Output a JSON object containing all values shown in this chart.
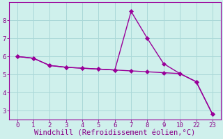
{
  "background_color": "#cff0ec",
  "grid_color": "#aad8d8",
  "line_color": "#990099",
  "markersize": 3,
  "linewidth": 1.0,
  "xlabel": "Windchill (Refroidissement éolien,°C)",
  "xlabel_color": "#880088",
  "xlabel_fontsize": 7.5,
  "tick_color": "#880088",
  "tick_fontsize": 6.5,
  "ylim": [
    2.5,
    9.0
  ],
  "yticks": [
    3,
    4,
    5,
    6,
    7,
    8
  ],
  "xtick_labels": [
    "0",
    "1",
    "2",
    "3",
    "4",
    "5",
    "6",
    "7",
    "8",
    "9",
    "10",
    "22",
    "23"
  ],
  "xtick_pos": [
    0,
    1,
    2,
    3,
    4,
    5,
    6,
    7,
    8,
    9,
    10,
    11,
    12
  ],
  "xlim": [
    -0.5,
    12.5
  ],
  "line1_x": [
    0,
    1,
    2,
    3,
    4,
    5,
    6,
    7,
    8,
    9,
    10,
    11,
    12
  ],
  "line1_y": [
    6.0,
    5.9,
    5.5,
    5.4,
    5.35,
    5.3,
    5.25,
    5.2,
    5.15,
    5.1,
    5.05,
    4.6,
    2.8
  ],
  "line2_x": [
    0,
    1,
    2,
    3,
    4,
    5,
    6,
    7,
    8,
    9,
    10,
    11,
    12
  ],
  "line2_y": [
    6.0,
    5.9,
    5.5,
    5.4,
    5.35,
    5.3,
    5.25,
    8.5,
    7.0,
    5.6,
    5.05,
    4.6,
    2.8
  ]
}
